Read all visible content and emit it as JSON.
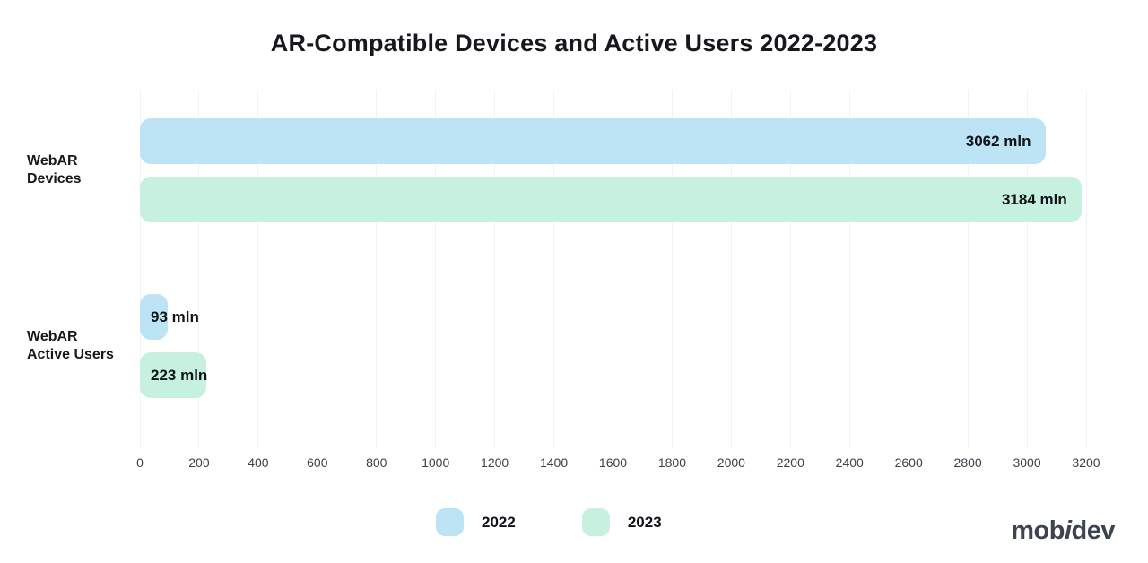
{
  "title": "AR-Compatible Devices and Active Users 2022-2023",
  "chart_data": {
    "type": "bar",
    "orientation": "horizontal",
    "categories": [
      {
        "label": "WebAR Devices",
        "label_lines": [
          "WebAR",
          "Devices"
        ]
      },
      {
        "label": "WebAR Active Users",
        "label_lines": [
          "WebAR",
          "Active Users"
        ]
      }
    ],
    "series": [
      {
        "name": "2022",
        "color": "#bde4f5",
        "values": [
          3062,
          93
        ]
      },
      {
        "name": "2023",
        "color": "#c5f1de",
        "values": [
          3184,
          223
        ]
      }
    ],
    "value_suffix": " mln",
    "value_labels": [
      [
        "3062 mln",
        "93 mln"
      ],
      [
        "3184 mln",
        "223 mln"
      ]
    ],
    "xlim": [
      0,
      3200
    ],
    "x_ticks": [
      0,
      200,
      400,
      600,
      800,
      1000,
      1200,
      1400,
      1600,
      1800,
      2000,
      2200,
      2400,
      2600,
      2800,
      3000,
      3200
    ],
    "grid": "vertical",
    "legend_position": "bottom-center"
  },
  "legend": {
    "items": [
      {
        "label": "2022",
        "color": "#bde4f5"
      },
      {
        "label": "2023",
        "color": "#c5f1de"
      }
    ]
  },
  "branding": {
    "logo_text": "mobidev",
    "logo_parts": {
      "left": "mob",
      "accent": "i",
      "right": "dev"
    },
    "logo_color": "#3d4350"
  },
  "colors": {
    "background": "#ffffff",
    "grid": "#f1f1fb",
    "tick_text": "#3a4049",
    "title_text": "#16181d",
    "value_text": "#101318"
  }
}
